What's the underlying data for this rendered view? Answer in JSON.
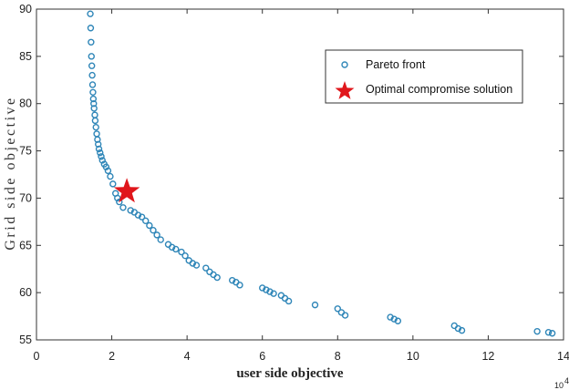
{
  "chart_data": {
    "type": "scatter",
    "title": "",
    "xlabel": "user side objective",
    "ylabel": "Grid side objective",
    "x_exponent_label": "10",
    "x_exponent_power": "4",
    "xlim": [
      0,
      14
    ],
    "ylim": [
      55,
      90
    ],
    "xticks": [
      0,
      2,
      4,
      6,
      8,
      10,
      12,
      14
    ],
    "yticks": [
      55,
      60,
      65,
      70,
      75,
      80,
      85,
      90
    ],
    "grid": false,
    "legend_placement": "top-right",
    "legend": [
      "Pareto front",
      "Optimal compromise solution"
    ],
    "colors": {
      "pareto": "#2f86b8",
      "optimal": "#e0161b"
    },
    "series": [
      {
        "name": "Pareto front",
        "marker": "circle",
        "x": [
          1.43,
          1.44,
          1.45,
          1.46,
          1.47,
          1.48,
          1.49,
          1.5,
          1.51,
          1.52,
          1.53,
          1.55,
          1.56,
          1.58,
          1.6,
          1.62,
          1.64,
          1.66,
          1.69,
          1.72,
          1.75,
          1.8,
          1.85,
          1.9,
          1.96,
          2.03,
          2.1,
          2.15,
          2.2,
          2.3,
          2.5,
          2.6,
          2.7,
          2.8,
          2.9,
          3.0,
          3.1,
          3.2,
          3.3,
          3.5,
          3.6,
          3.7,
          3.85,
          3.95,
          4.05,
          4.15,
          4.25,
          4.5,
          4.6,
          4.7,
          4.8,
          5.2,
          5.3,
          5.4,
          6.0,
          6.1,
          6.2,
          6.3,
          6.5,
          6.6,
          6.7,
          7.4,
          8.0,
          8.1,
          8.2,
          9.4,
          9.5,
          9.6,
          11.1,
          11.2,
          11.3,
          13.3,
          13.6,
          13.7
        ],
        "y": [
          89.5,
          88.0,
          86.5,
          85.0,
          84.0,
          83.0,
          82.0,
          81.2,
          80.5,
          80.0,
          79.5,
          78.8,
          78.2,
          77.5,
          76.8,
          76.2,
          75.7,
          75.2,
          74.8,
          74.4,
          74.0,
          73.6,
          73.3,
          72.9,
          72.3,
          71.5,
          70.5,
          70.0,
          69.6,
          69.0,
          68.7,
          68.5,
          68.2,
          68.0,
          67.6,
          67.1,
          66.6,
          66.1,
          65.6,
          65.1,
          64.8,
          64.6,
          64.3,
          63.9,
          63.4,
          63.1,
          62.9,
          62.6,
          62.2,
          61.9,
          61.6,
          61.3,
          61.1,
          60.8,
          60.5,
          60.3,
          60.1,
          59.9,
          59.7,
          59.4,
          59.1,
          58.7,
          58.3,
          57.9,
          57.6,
          57.4,
          57.2,
          57.0,
          56.5,
          56.2,
          56.0,
          55.9,
          55.8,
          55.7
        ]
      },
      {
        "name": "Optimal compromise solution",
        "marker": "star",
        "x": [
          2.4
        ],
        "y": [
          70.7
        ]
      }
    ]
  }
}
